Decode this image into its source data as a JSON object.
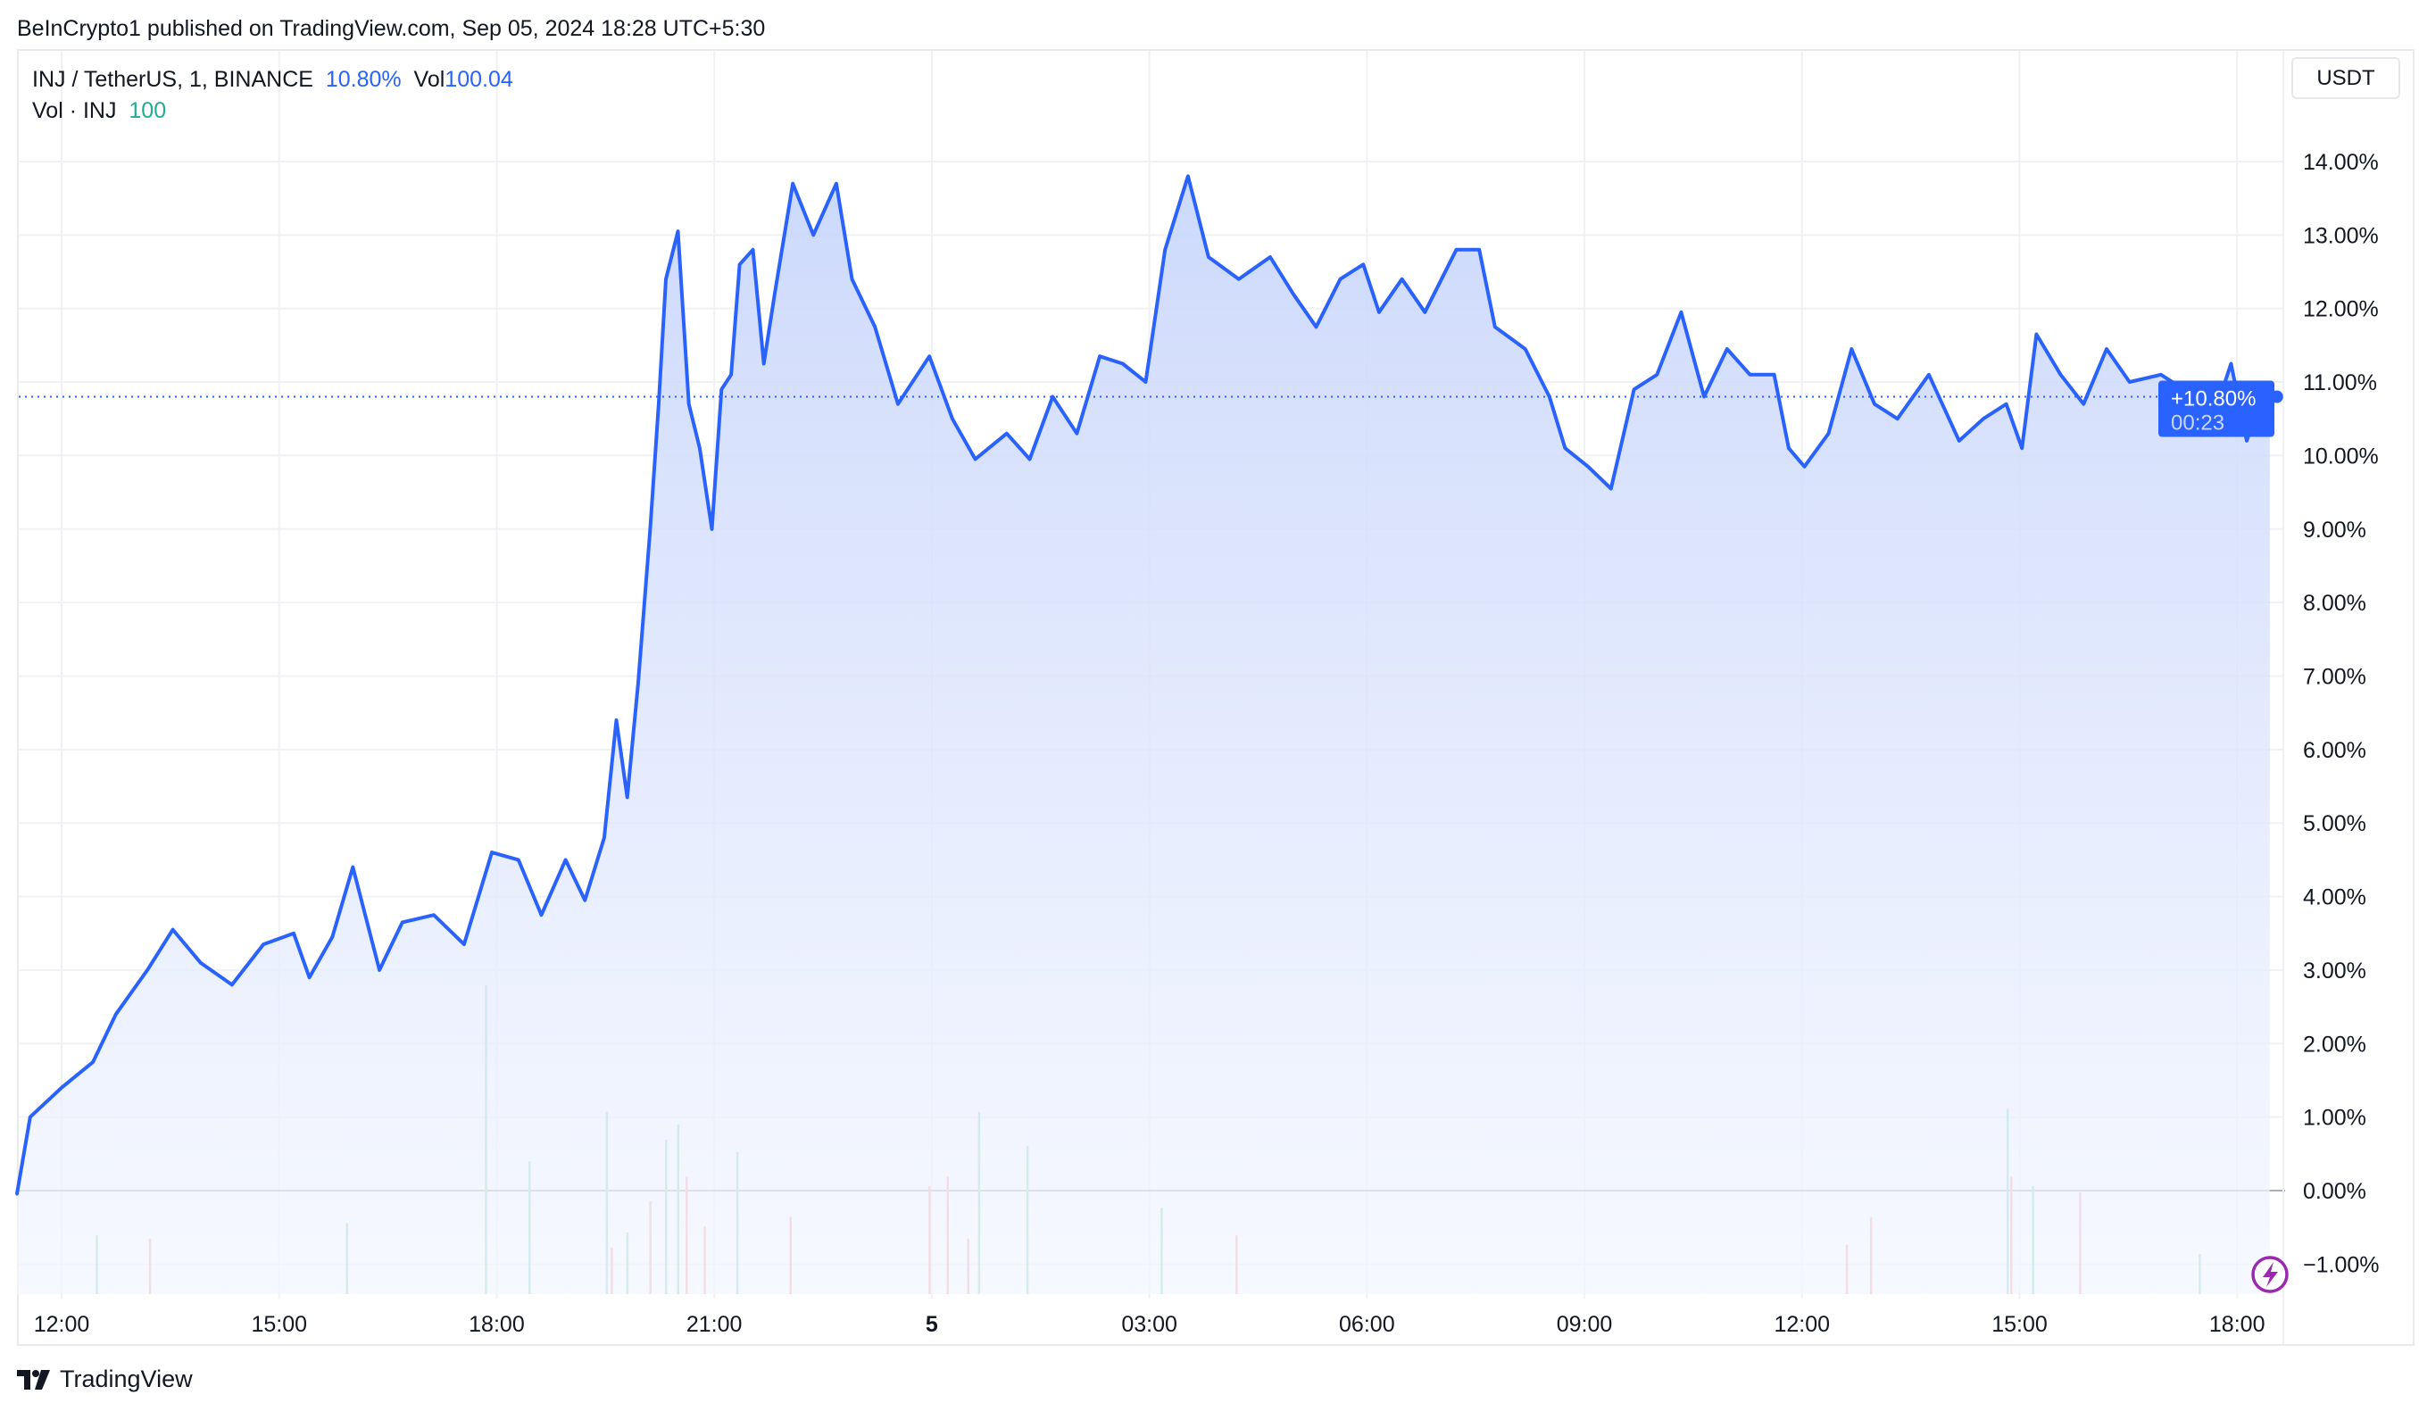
{
  "publisher_line": "BeInCrypto1 published on TradingView.com, Sep 05, 2024 18:28 UTC+5:30",
  "legend": {
    "symbol": "INJ / TetherUS, 1, BINANCE",
    "change": "10.80%",
    "vol_label": "Vol",
    "vol_value": "100.04",
    "vol_series": "Vol · INJ",
    "vol_series_value": "100"
  },
  "currency_button": "USDT",
  "price_badge": {
    "value": "+10.80%",
    "countdown": "00:23"
  },
  "brand": "TradingView",
  "colors": {
    "line": "#2962ff",
    "up_volume": "#8fd3c8",
    "down_volume": "#f5a6a6",
    "badge": "#2962ff"
  },
  "icons": [
    "tradingview-logo-icon",
    "lightning-icon"
  ],
  "chart_data": {
    "type": "area",
    "ylabel": "",
    "xlabel": "",
    "y_unit": "%",
    "ylim": [
      -1.4,
      14.8
    ],
    "grid": true,
    "y_ticks": [
      "14.00%",
      "13.00%",
      "12.00%",
      "11.00%",
      "10.00%",
      "9.00%",
      "8.00%",
      "7.00%",
      "6.00%",
      "5.00%",
      "4.00%",
      "3.00%",
      "2.00%",
      "1.00%",
      "0.00%",
      "−1.00%"
    ],
    "y_tick_values": [
      14,
      13,
      12,
      11,
      10,
      9,
      8,
      7,
      6,
      5,
      4,
      3,
      2,
      1,
      0,
      -1
    ],
    "x_ticks": [
      "12:00",
      "15:00",
      "18:00",
      "21:00",
      "5",
      "03:00",
      "06:00",
      "09:00",
      "12:00",
      "15:00",
      "18:00"
    ],
    "x_tick_times": [
      "09-04 12:00",
      "09-04 15:00",
      "09-04 18:00",
      "09-04 21:00",
      "09-05 00:00",
      "09-05 03:00",
      "09-05 06:00",
      "09-05 09:00",
      "09-05 12:00",
      "09-05 15:00",
      "09-05 18:00"
    ],
    "series": [
      {
        "points": [
          [
            "09-04 11:23",
            -0.05
          ],
          [
            "09-04 11:34",
            1.0
          ],
          [
            "09-04 12:00",
            1.4
          ],
          [
            "09-04 12:26",
            1.75
          ],
          [
            "09-04 12:45",
            2.4
          ],
          [
            "09-04 13:11",
            3.0
          ],
          [
            "09-04 13:32",
            3.55
          ],
          [
            "09-04 13:55",
            3.1
          ],
          [
            "09-04 14:21",
            2.8
          ],
          [
            "09-04 14:47",
            3.35
          ],
          [
            "09-04 15:12",
            3.5
          ],
          [
            "09-04 15:25",
            2.9
          ],
          [
            "09-04 15:44",
            3.45
          ],
          [
            "09-04 16:01",
            4.4
          ],
          [
            "09-04 16:23",
            3.0
          ],
          [
            "09-04 16:42",
            3.65
          ],
          [
            "09-04 17:08",
            3.75
          ],
          [
            "09-04 17:33",
            3.35
          ],
          [
            "09-04 17:56",
            4.6
          ],
          [
            "09-04 18:18",
            4.5
          ],
          [
            "09-04 18:37",
            3.75
          ],
          [
            "09-04 18:57",
            4.5
          ],
          [
            "09-04 19:13",
            3.95
          ],
          [
            "09-04 19:29",
            4.8
          ],
          [
            "09-04 19:39",
            6.4
          ],
          [
            "09-04 19:48",
            5.35
          ],
          [
            "09-04 19:57",
            6.9
          ],
          [
            "09-04 20:07",
            9.0
          ],
          [
            "09-04 20:14",
            10.7
          ],
          [
            "09-04 20:20",
            12.4
          ],
          [
            "09-04 20:30",
            13.05
          ],
          [
            "09-04 20:39",
            10.7
          ],
          [
            "09-04 20:48",
            10.1
          ],
          [
            "09-04 20:58",
            9.0
          ],
          [
            "09-04 21:06",
            10.9
          ],
          [
            "09-04 21:14",
            11.1
          ],
          [
            "09-04 21:21",
            12.6
          ],
          [
            "09-04 21:32",
            12.8
          ],
          [
            "09-04 21:41",
            11.25
          ],
          [
            "09-04 21:50",
            12.2
          ],
          [
            "09-04 22:05",
            13.7
          ],
          [
            "09-04 22:22",
            13.0
          ],
          [
            "09-04 22:41",
            13.7
          ],
          [
            "09-04 22:54",
            12.4
          ],
          [
            "09-04 23:13",
            11.75
          ],
          [
            "09-04 23:32",
            10.7
          ],
          [
            "09-04 23:58",
            11.35
          ],
          [
            "09-05 00:17",
            10.5
          ],
          [
            "09-05 00:36",
            9.95
          ],
          [
            "09-05 01:02",
            10.3
          ],
          [
            "09-05 01:21",
            9.95
          ],
          [
            "09-05 01:40",
            10.8
          ],
          [
            "09-05 02:00",
            10.3
          ],
          [
            "09-05 02:19",
            11.35
          ],
          [
            "09-05 02:38",
            11.25
          ],
          [
            "09-05 02:57",
            11.0
          ],
          [
            "09-05 03:13",
            12.8
          ],
          [
            "09-05 03:32",
            13.8
          ],
          [
            "09-05 03:49",
            12.7
          ],
          [
            "09-05 04:14",
            12.4
          ],
          [
            "09-05 04:40",
            12.7
          ],
          [
            "09-05 04:59",
            12.2
          ],
          [
            "09-05 05:18",
            11.75
          ],
          [
            "09-05 05:38",
            12.4
          ],
          [
            "09-05 05:57",
            12.6
          ],
          [
            "09-05 06:10",
            11.95
          ],
          [
            "09-05 06:29",
            12.4
          ],
          [
            "09-05 06:48",
            11.95
          ],
          [
            "09-05 07:14",
            12.8
          ],
          [
            "09-05 07:33",
            12.8
          ],
          [
            "09-05 07:46",
            11.75
          ],
          [
            "09-05 08:11",
            11.45
          ],
          [
            "09-05 08:31",
            10.8
          ],
          [
            "09-05 08:44",
            10.1
          ],
          [
            "09-05 09:03",
            9.85
          ],
          [
            "09-05 09:22",
            9.55
          ],
          [
            "09-05 09:41",
            10.9
          ],
          [
            "09-05 10:00",
            11.1
          ],
          [
            "09-05 10:20",
            11.95
          ],
          [
            "09-05 10:39",
            10.8
          ],
          [
            "09-05 10:58",
            11.45
          ],
          [
            "09-05 11:17",
            11.1
          ],
          [
            "09-05 11:37",
            11.1
          ],
          [
            "09-05 11:49",
            10.1
          ],
          [
            "09-05 12:02",
            9.85
          ],
          [
            "09-05 12:22",
            10.3
          ],
          [
            "09-05 12:41",
            11.45
          ],
          [
            "09-05 13:00",
            10.7
          ],
          [
            "09-05 13:19",
            10.5
          ],
          [
            "09-05 13:45",
            11.1
          ],
          [
            "09-05 14:10",
            10.2
          ],
          [
            "09-05 14:30",
            10.5
          ],
          [
            "09-05 14:49",
            10.7
          ],
          [
            "09-05 15:02",
            10.1
          ],
          [
            "09-05 15:14",
            11.65
          ],
          [
            "09-05 15:34",
            11.1
          ],
          [
            "09-05 15:53",
            10.7
          ],
          [
            "09-05 16:12",
            11.45
          ],
          [
            "09-05 16:31",
            11.0
          ],
          [
            "09-05 16:57",
            11.1
          ],
          [
            "09-05 17:16",
            10.9
          ],
          [
            "09-05 17:36",
            10.3
          ],
          [
            "09-05 17:55",
            11.25
          ],
          [
            "09-05 18:08",
            10.2
          ],
          [
            "09-05 18:18",
            10.7
          ],
          [
            "09-05 18:27",
            10.8
          ]
        ]
      }
    ],
    "last_value": 10.8,
    "volume_relative": [
      [
        "09-04 12:29",
        19,
        "up"
      ],
      [
        "09-04 13:13",
        18,
        "down"
      ],
      [
        "09-04 15:56",
        23,
        "up"
      ],
      [
        "09-04 17:51",
        100,
        "up"
      ],
      [
        "09-04 18:27",
        43,
        "up"
      ],
      [
        "09-04 19:31",
        59,
        "up"
      ],
      [
        "09-04 19:35",
        15,
        "down"
      ],
      [
        "09-04 19:48",
        20,
        "up"
      ],
      [
        "09-04 20:07",
        30,
        "down"
      ],
      [
        "09-04 20:20",
        50,
        "up"
      ],
      [
        "09-04 20:30",
        55,
        "up"
      ],
      [
        "09-04 20:37",
        38,
        "down"
      ],
      [
        "09-04 20:52",
        22,
        "down"
      ],
      [
        "09-04 21:19",
        46,
        "up"
      ],
      [
        "09-04 22:03",
        25,
        "down"
      ],
      [
        "09-04 23:58",
        35,
        "down"
      ],
      [
        "09-05 00:13",
        38,
        "down"
      ],
      [
        "09-05 00:30",
        18,
        "down"
      ],
      [
        "09-05 00:39",
        59,
        "up"
      ],
      [
        "09-05 01:19",
        48,
        "up"
      ],
      [
        "09-05 03:10",
        28,
        "up"
      ],
      [
        "09-05 04:12",
        19,
        "down"
      ],
      [
        "09-05 12:37",
        16,
        "down"
      ],
      [
        "09-05 12:57",
        25,
        "down"
      ],
      [
        "09-05 14:50",
        60,
        "up"
      ],
      [
        "09-05 14:53",
        38,
        "down"
      ],
      [
        "09-05 15:11",
        35,
        "up"
      ],
      [
        "09-05 15:50",
        33,
        "down"
      ],
      [
        "09-05 17:29",
        13,
        "up"
      ]
    ]
  }
}
